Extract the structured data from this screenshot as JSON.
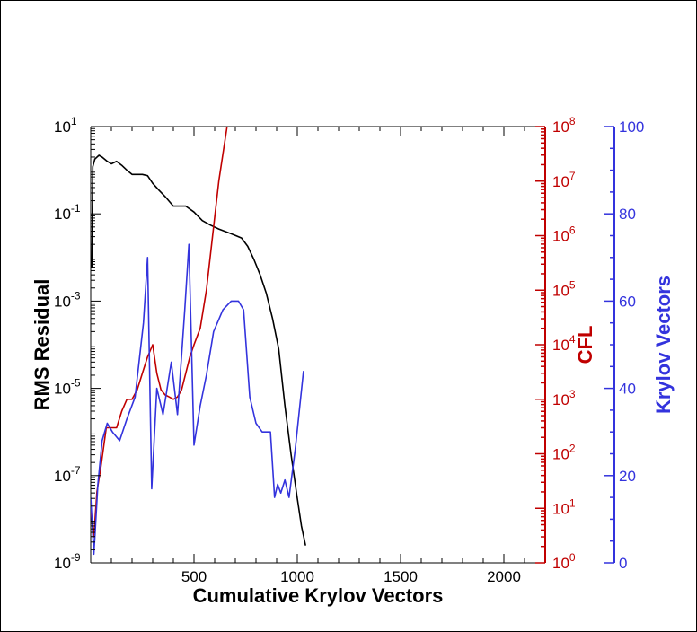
{
  "chart_data": {
    "type": "line",
    "title": "",
    "xlabel": "Cumulative Krylov Vectors",
    "xlim": [
      0,
      2200
    ],
    "x_ticks": [
      500,
      1000,
      1500,
      2000
    ],
    "grid": false,
    "axes": {
      "left": {
        "label": "RMS Residual",
        "scale": "log",
        "ylim": [
          1e-09,
          10
        ],
        "color": "#000000",
        "ticks": [
          {
            "value": 10,
            "base": "10",
            "exp": "1"
          },
          {
            "value": 0.1,
            "base": "10",
            "exp": "-1"
          },
          {
            "value": 0.001,
            "base": "10",
            "exp": "-3"
          },
          {
            "value": 1e-05,
            "base": "10",
            "exp": "-5"
          },
          {
            "value": 1e-07,
            "base": "10",
            "exp": "-7"
          },
          {
            "value": 1e-09,
            "base": "10",
            "exp": "-9"
          }
        ]
      },
      "cfl": {
        "label": "CFL",
        "scale": "log",
        "ylim": [
          1,
          100000000
        ],
        "color": "#c00000",
        "ticks": [
          {
            "value": 1,
            "base": "10",
            "exp": "0"
          },
          {
            "value": 10,
            "base": "10",
            "exp": "1"
          },
          {
            "value": 100,
            "base": "10",
            "exp": "2"
          },
          {
            "value": 1000,
            "base": "10",
            "exp": "3"
          },
          {
            "value": 10000,
            "base": "10",
            "exp": "4"
          },
          {
            "value": 100000,
            "base": "10",
            "exp": "5"
          },
          {
            "value": 1000000,
            "base": "10",
            "exp": "6"
          },
          {
            "value": 10000000,
            "base": "10",
            "exp": "7"
          },
          {
            "value": 100000000,
            "base": "10",
            "exp": "8"
          }
        ]
      },
      "krylov": {
        "label": "Krylov Vectors",
        "scale": "linear",
        "ylim": [
          0,
          100
        ],
        "color": "#3333dd",
        "ticks": [
          0,
          20,
          40,
          60,
          80,
          100
        ]
      }
    },
    "series": [
      {
        "axis": "left",
        "color": "#000000",
        "x": [
          5,
          10,
          20,
          40,
          55,
          80,
          100,
          125,
          150,
          175,
          200,
          225,
          250,
          275,
          300,
          330,
          360,
          400,
          430,
          460,
          500,
          540,
          580,
          620,
          660,
          700,
          730,
          760,
          790,
          820,
          850,
          880,
          910,
          940,
          970,
          1000,
          1020,
          1040
        ],
        "y": [
          0.006,
          1.2,
          1.8,
          2.2,
          2.0,
          1.6,
          1.4,
          1.6,
          1.3,
          1.0,
          0.8,
          0.8,
          0.8,
          0.75,
          0.5,
          0.35,
          0.25,
          0.15,
          0.15,
          0.15,
          0.11,
          0.07,
          0.055,
          0.045,
          0.038,
          0.032,
          0.028,
          0.018,
          0.009,
          0.004,
          0.0015,
          0.0004,
          8e-05,
          4e-06,
          3e-07,
          3e-08,
          7e-09,
          2.5e-09
        ]
      },
      {
        "axis": "cfl",
        "color": "#c00000",
        "x": [
          0,
          15,
          30,
          50,
          75,
          100,
          125,
          150,
          175,
          200,
          225,
          250,
          275,
          300,
          320,
          340,
          360,
          380,
          400,
          420,
          440,
          460,
          480,
          500,
          530,
          560,
          590,
          620,
          660,
          700,
          740,
          770,
          800,
          840,
          880,
          910,
          940,
          970,
          1000,
          1010
        ],
        "y": [
          10,
          3,
          20,
          60,
          300,
          300,
          300,
          600,
          1000,
          1000,
          1500,
          3000,
          6000,
          10000,
          3000,
          1500,
          1200,
          1100,
          1000,
          1100,
          1500,
          3000,
          6000,
          10000,
          20000,
          100000,
          1000000,
          10000000,
          100000000,
          100000000,
          100000000,
          100000000,
          100000000,
          100000000,
          100000000,
          100000000,
          100000000,
          100000000,
          100000000,
          100000000
        ]
      },
      {
        "axis": "krylov",
        "color": "#3333dd",
        "x": [
          0,
          15,
          35,
          55,
          80,
          105,
          140,
          175,
          215,
          255,
          275,
          295,
          320,
          350,
          390,
          420,
          455,
          475,
          500,
          530,
          560,
          595,
          640,
          680,
          715,
          740,
          770,
          800,
          830,
          870,
          890,
          905,
          920,
          940,
          960,
          990,
          1030
        ],
        "y": [
          15,
          2,
          18,
          28,
          32,
          30,
          28,
          33,
          38,
          55,
          70,
          17,
          40,
          34,
          46,
          34,
          58,
          73,
          27,
          36,
          43,
          53,
          58,
          60,
          60,
          58,
          38,
          32,
          30,
          30,
          15,
          18,
          16,
          19,
          15,
          26,
          44
        ]
      }
    ]
  }
}
